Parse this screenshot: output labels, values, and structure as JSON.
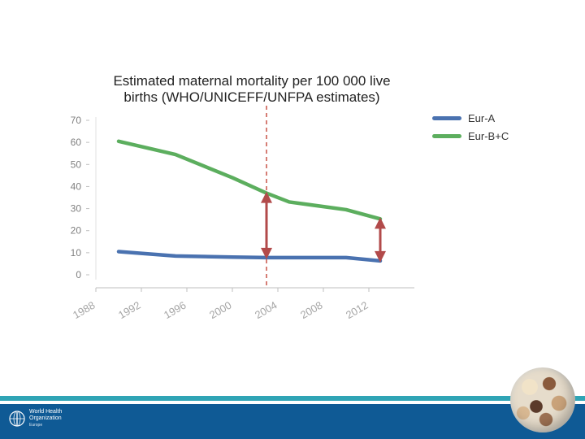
{
  "chart_data": {
    "type": "line",
    "title_line1": "Estimated maternal mortality per 100 000 live",
    "title_line2": "births (WHO/UNICEFF/UNFPA estimates)",
    "x_ticks": [
      "1988",
      "1992",
      "1996",
      "2000",
      "2004",
      "2008",
      "2012"
    ],
    "x_range": [
      1988,
      2016
    ],
    "y_ticks": [
      "0",
      "10",
      "20",
      "30",
      "40",
      "50",
      "60",
      "70"
    ],
    "y_range": [
      0,
      70
    ],
    "series": [
      {
        "name": "Eur-A",
        "color": "#4a72b0",
        "x": [
          1990,
          1995,
          2000,
          2003,
          2005,
          2010,
          2013
        ],
        "y": [
          10.5,
          8.5,
          8.0,
          7.8,
          7.8,
          7.8,
          6.3
        ]
      },
      {
        "name": "Eur-B+C",
        "color": "#5cae5e",
        "x": [
          1990,
          1995,
          2000,
          2003,
          2005,
          2010,
          2013
        ],
        "y": [
          60.5,
          54.5,
          44.0,
          37.0,
          33.0,
          29.5,
          25.3
        ]
      }
    ],
    "reference_line": {
      "x": 2003,
      "color": "#c0392b",
      "style": "dashed"
    },
    "gap_arrows": [
      {
        "x": 2003,
        "from": 7.8,
        "to": 37.0
      },
      {
        "x": 2013,
        "from": 6.3,
        "to": 25.3
      }
    ],
    "arrow_color": "#b24a4a"
  },
  "footer": {
    "accent_color": "#2fa4b5",
    "bar_color": "#0f5a95",
    "org_line1": "World Health",
    "org_line2": "Organization",
    "org_line3": "Europe"
  }
}
